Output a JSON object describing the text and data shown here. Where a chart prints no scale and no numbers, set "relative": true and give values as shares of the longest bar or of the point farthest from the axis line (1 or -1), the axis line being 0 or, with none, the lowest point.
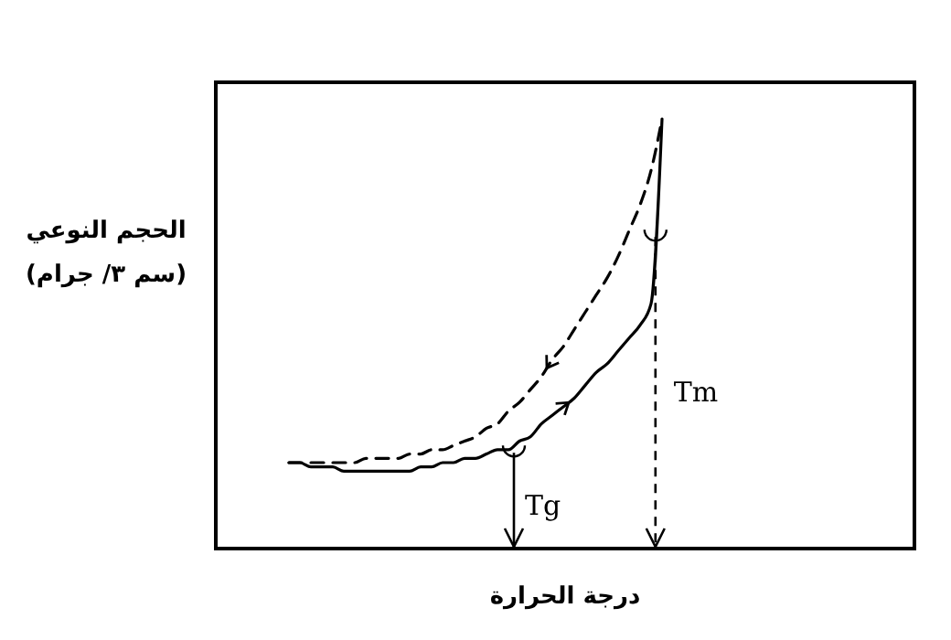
{
  "chart_data": {
    "type": "line",
    "relative": true,
    "xlabel": "درجة الحرارة",
    "ylabel": "الحجم النوعي (سم ٣/ جرام)",
    "categories": [
      null,
      null,
      null,
      null,
      null,
      null,
      null,
      null,
      null,
      null,
      null,
      null,
      null,
      null,
      null,
      null,
      null,
      null,
      null,
      null,
      null,
      null,
      null,
      null,
      null,
      null,
      null,
      null,
      null,
      null,
      null,
      null,
      null,
      null,
      null
    ],
    "series": [
      {
        "color": "#000000",
        "line_style": "solid",
        "values": [
          0.2,
          0.2,
          0.19,
          0.19,
          0.19,
          0.18,
          0.18,
          0.18,
          0.18,
          0.18,
          0.18,
          0.18,
          0.19,
          0.19,
          0.2,
          0.2,
          0.21,
          0.21,
          0.22,
          0.23,
          0.23,
          0.25,
          0.26,
          0.29,
          0.31,
          0.33,
          0.35,
          0.38,
          0.41,
          0.43,
          0.46,
          0.49,
          0.52,
          0.57,
          1
        ]
      },
      {
        "color": "#000000",
        "line_style": "dashed",
        "values": [
          0.2,
          0.2,
          0.2,
          0.2,
          0.2,
          0.2,
          0.2,
          0.21,
          0.21,
          0.21,
          0.21,
          0.22,
          0.22,
          0.23,
          0.23,
          0.24,
          0.25,
          0.26,
          0.28,
          0.29,
          0.32,
          0.34,
          0.37,
          0.4,
          0.44,
          0.47,
          0.51,
          0.55,
          0.59,
          0.63,
          0.68,
          0.74,
          0.8,
          0.88,
          1
        ]
      }
    ],
    "annotations": [
      "Tg",
      "Tm"
    ]
  }
}
